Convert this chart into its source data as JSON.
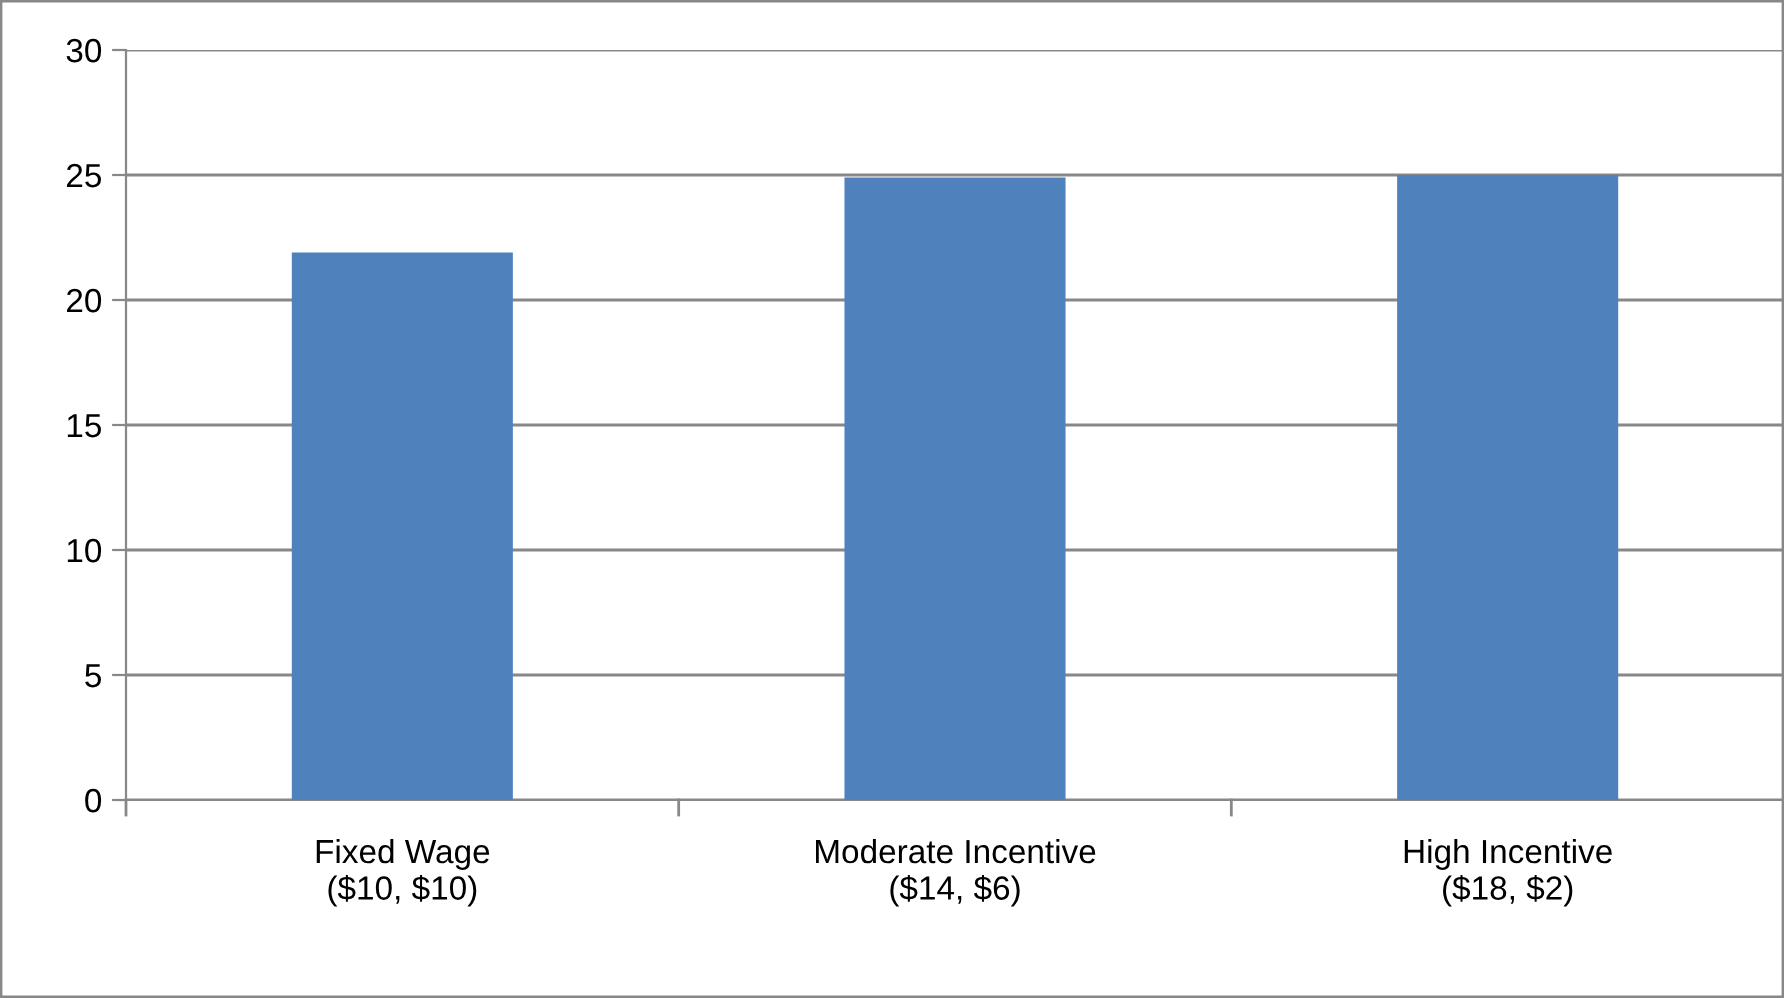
{
  "chart_data": {
    "type": "bar",
    "categories": [
      "Fixed Wage\n($10, $10)",
      "Moderate Incentive\n($14, $6)",
      "High Incentive\n($18, $2)"
    ],
    "values": [
      21.9,
      24.9,
      25.0
    ],
    "color": "#4f81bd",
    "ylim": [
      0,
      30
    ],
    "yticks": [
      0,
      5,
      10,
      15,
      20,
      25,
      30
    ],
    "grid": "y",
    "legend": false
  }
}
